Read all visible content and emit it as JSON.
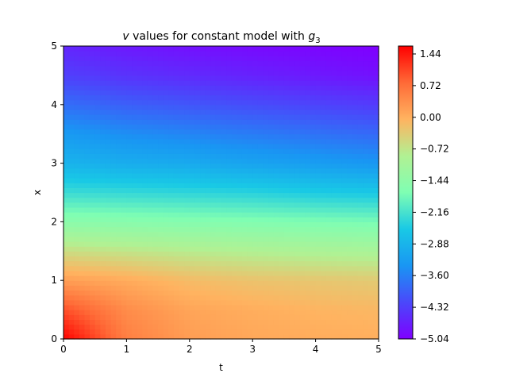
{
  "chart_data": {
    "type": "heatmap",
    "title": {
      "prefix": "v",
      "text": " values for constant model with ",
      "symbol": "g",
      "subscript": "3"
    },
    "xlabel": "t",
    "ylabel": "x",
    "xlim": [
      0,
      5
    ],
    "ylim": [
      0,
      5
    ],
    "xticks": [
      0,
      1,
      2,
      3,
      4,
      5
    ],
    "yticks": [
      0,
      1,
      2,
      3,
      4,
      5
    ],
    "colormap": "rainbow",
    "colorbar": {
      "min": -5.04,
      "max": 1.62,
      "ticks": [
        "1.44",
        "0.72",
        "0.00",
        "−0.72",
        "−1.44",
        "−2.16",
        "−2.88",
        "−3.60",
        "−4.32",
        "−5.04"
      ],
      "tick_values": [
        1.44,
        0.72,
        0.0,
        -0.72,
        -1.44,
        -2.16,
        -2.88,
        -3.6,
        -4.32,
        -5.04
      ]
    },
    "grid": false,
    "field": {
      "t": [
        0,
        1,
        2,
        3,
        4,
        5
      ],
      "x": [
        0,
        0.5,
        1,
        1.5,
        2,
        2.5,
        3,
        3.5,
        4,
        4.5,
        5
      ],
      "values": [
        [
          1.62,
          0.55,
          0.2,
          0.08,
          0.03,
          0.0
        ],
        [
          1.0,
          0.4,
          0.12,
          0.02,
          -0.06,
          -0.1
        ],
        [
          0.2,
          0.05,
          -0.15,
          -0.25,
          -0.3,
          -0.35
        ],
        [
          -0.6,
          -0.7,
          -0.8,
          -0.88,
          -0.95,
          -1.0
        ],
        [
          -1.5,
          -1.55,
          -1.6,
          -1.65,
          -1.7,
          -1.75
        ],
        [
          -2.25,
          -2.3,
          -2.35,
          -2.4,
          -2.5,
          -2.55
        ],
        [
          -2.9,
          -3.0,
          -3.05,
          -3.15,
          -3.25,
          -3.35
        ],
        [
          -3.3,
          -3.45,
          -3.55,
          -3.65,
          -3.75,
          -3.85
        ],
        [
          -3.8,
          -3.95,
          -4.05,
          -4.15,
          -4.25,
          -4.35
        ],
        [
          -4.3,
          -4.45,
          -4.55,
          -4.65,
          -4.75,
          -4.85
        ],
        [
          -4.6,
          -4.75,
          -4.85,
          -4.92,
          -4.98,
          -5.04
        ]
      ]
    }
  }
}
